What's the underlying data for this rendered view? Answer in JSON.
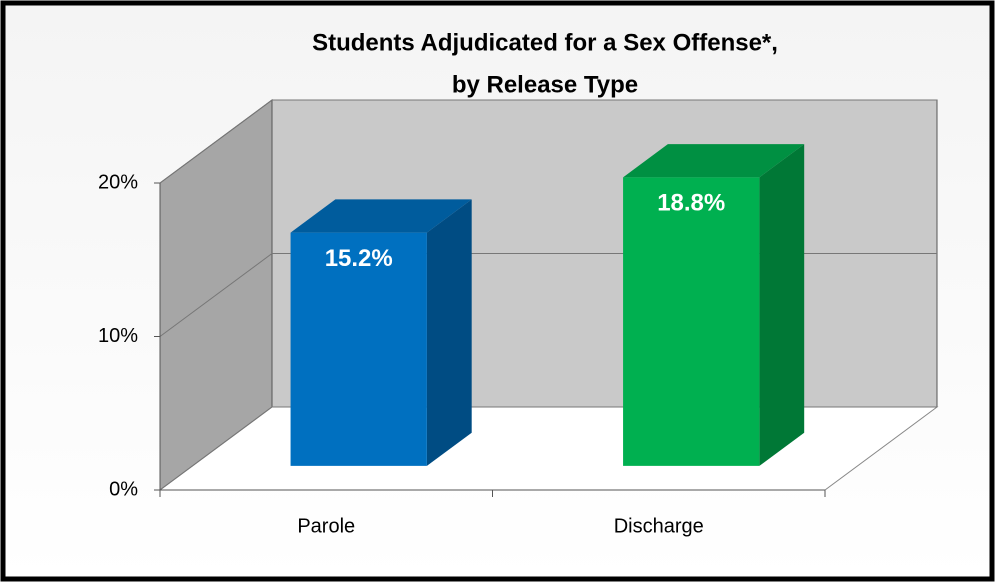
{
  "chart_data": {
    "type": "bar3d",
    "title": [
      "Students Adjudicated for a Sex Offense*,",
      "by Release Type"
    ],
    "categories": [
      "Parole",
      "Discharge"
    ],
    "values": [
      15.2,
      18.8
    ],
    "value_labels": [
      "15.2%",
      "18.8%"
    ],
    "colors": [
      "#0070c0",
      "#00b050"
    ],
    "ylim": [
      0,
      20
    ],
    "yticks": [
      {
        "value": 0,
        "label": "0%"
      },
      {
        "value": 10,
        "label": "10%"
      },
      {
        "value": 20,
        "label": "20%"
      }
    ],
    "grid": true
  }
}
